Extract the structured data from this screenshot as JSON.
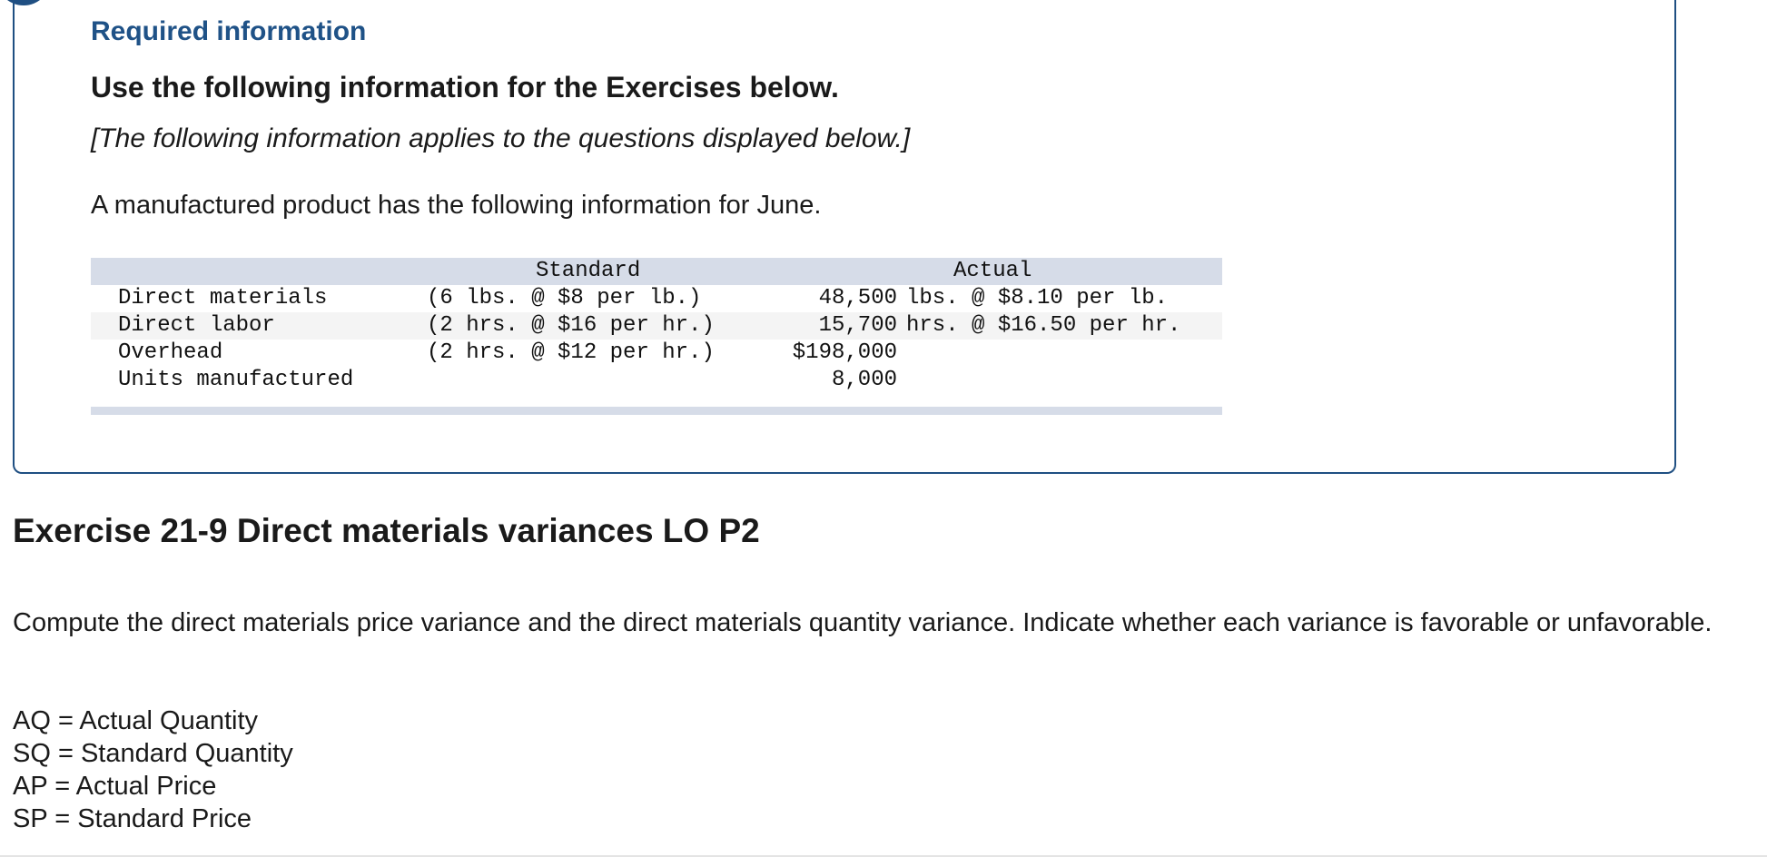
{
  "info_box": {
    "required_title": "Required information",
    "heading": "Use the following information for the Exercises below.",
    "note": "[The following information applies to the questions displayed below.]",
    "intro": "A manufactured product has the following information for June."
  },
  "table": {
    "headers": {
      "standard": "Standard",
      "actual": "Actual"
    },
    "rows": [
      {
        "label": "Direct materials",
        "standard": "(6 lbs. @ $8 per lb.)",
        "actual_qty": "48,500",
        "actual_rate": "lbs. @ $8.10 per lb."
      },
      {
        "label": "Direct labor",
        "standard": "(2 hrs. @ $16 per hr.)",
        "actual_qty": "15,700",
        "actual_rate": "hrs. @ $16.50 per hr."
      },
      {
        "label": "Overhead",
        "standard": "(2 hrs. @ $12 per hr.)",
        "actual_qty": "$198,000",
        "actual_rate": ""
      },
      {
        "label": "Units manufactured",
        "standard": "",
        "actual_qty": "8,000",
        "actual_rate": ""
      }
    ]
  },
  "exercise": {
    "title": "Exercise 21-9 Direct materials variances LO P2",
    "instructions": "Compute the direct materials price variance and the direct materials quantity variance. Indicate whether each variance is favorable or unfavorable.",
    "definitions": [
      "AQ = Actual Quantity",
      "SQ = Standard Quantity",
      "AP = Actual Price",
      "SP = Standard Price"
    ]
  },
  "colors": {
    "accent": "#1f4f82",
    "table_header": "#d6dce8",
    "row_alt": "#f4f4f4"
  }
}
